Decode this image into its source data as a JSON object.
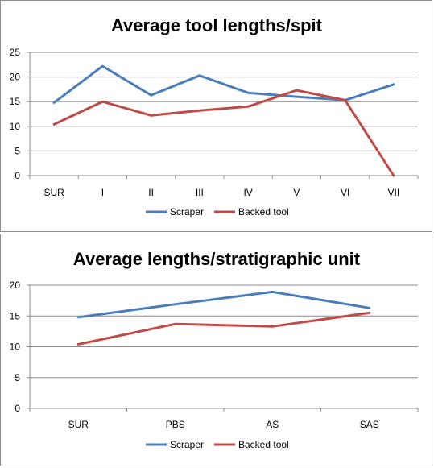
{
  "chart_data": [
    {
      "type": "line",
      "title": "Average tool lengths/spit",
      "categories": [
        "SUR",
        "I",
        "II",
        "III",
        "IV",
        "V",
        "VI",
        "VII"
      ],
      "ylim": [
        0,
        25
      ],
      "yticks": [
        0,
        5,
        10,
        15,
        20,
        25
      ],
      "grid": true,
      "legend": "bottom",
      "series": [
        {
          "name": "Scraper",
          "color": "#4a7ebb",
          "values": [
            14.8,
            22.2,
            16.3,
            20.3,
            16.8,
            16.0,
            15.3,
            18.5
          ]
        },
        {
          "name": "Backed tool",
          "color": "#be4b48",
          "values": [
            10.4,
            15.0,
            12.2,
            13.2,
            14.0,
            17.3,
            15.3,
            0
          ]
        }
      ]
    },
    {
      "type": "line",
      "title": "Average lengths/stratigraphic unit",
      "categories": [
        "SUR",
        "PBS",
        "AS",
        "SAS"
      ],
      "ylim": [
        0,
        20
      ],
      "yticks": [
        0,
        5,
        10,
        15,
        20
      ],
      "grid": true,
      "legend": "bottom",
      "series": [
        {
          "name": "Scraper",
          "color": "#4a7ebb",
          "values": [
            14.8,
            16.9,
            18.9,
            16.3
          ]
        },
        {
          "name": "Backed tool",
          "color": "#be4b48",
          "values": [
            10.4,
            13.7,
            13.3,
            15.5
          ]
        }
      ]
    }
  ]
}
